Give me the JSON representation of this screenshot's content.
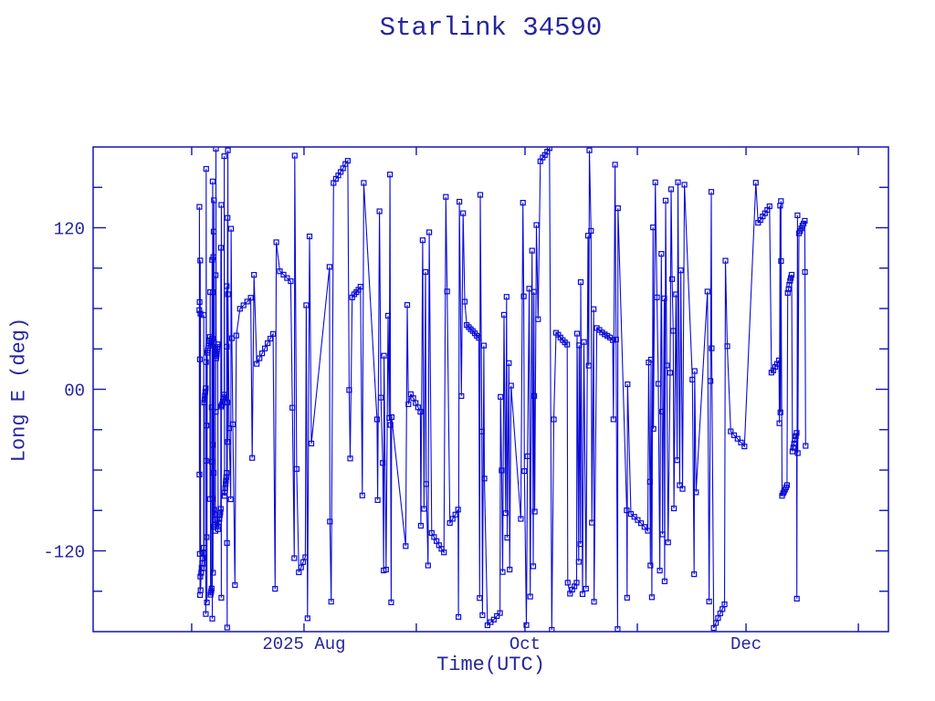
{
  "window": {
    "background": "#ffffff"
  },
  "colors": {
    "background": "#ffffff",
    "data_blue": "#0a0ad8",
    "frame_blue": "#1414b4",
    "text_blue": "#26269c"
  },
  "chart_data": {
    "type": "line",
    "title": "Starlink 34590",
    "xlabel": "Time(UTC)",
    "ylabel": "Long E (deg)",
    "marker": "open-square",
    "marker_size_px": 5,
    "grid": false,
    "legend": null,
    "x_axis": {
      "epoch": "2025-07-01",
      "range_days": [
        -27.2,
        192.3
      ],
      "ticks": [
        {
          "day": 0,
          "label": ""
        },
        {
          "day": 31,
          "label": "2025 Aug"
        },
        {
          "day": 62,
          "label": ""
        },
        {
          "day": 92,
          "label": "Oct"
        },
        {
          "day": 123,
          "label": ""
        },
        {
          "day": 153,
          "label": "Dec"
        },
        {
          "day": 184,
          "label": ""
        }
      ]
    },
    "y_axis": {
      "range": [
        -180,
        180
      ],
      "minor_tick_step": 30,
      "ticks": [
        {
          "value": 120,
          "label": "120"
        },
        {
          "value": 0,
          "label": "00"
        },
        {
          "value": -120,
          "label": "-120"
        }
      ]
    },
    "series_synthesis": {
      "description": "Satellite east-longitude samples vs time; longitude wraps at +/-180 producing tall vertical connecting lines",
      "seed": 34590,
      "start_day": 2.1,
      "end_day": 169.3,
      "dense_until_day": 10,
      "dense_from_day": 162,
      "dense_early_factor": 0.14,
      "dense_late_factor": 0.35,
      "chain_prob": 0.13,
      "gap_prob": 0.05,
      "base_step_deg": -137,
      "step_noise_deg": 200
    }
  }
}
